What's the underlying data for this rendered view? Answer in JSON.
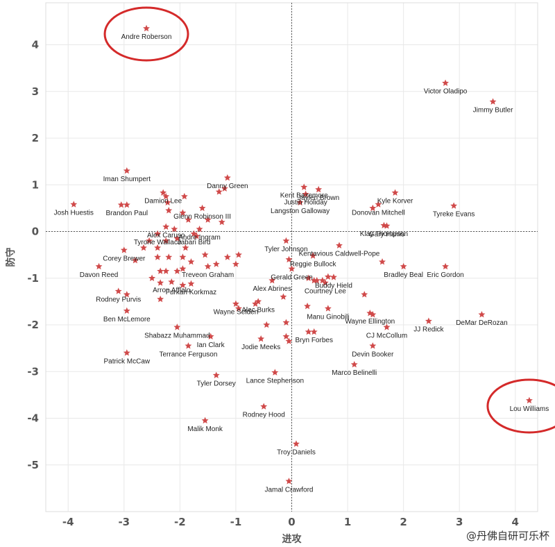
{
  "colors": {
    "marker": "#d04a4a",
    "highlight": "#d42a2a",
    "grid": "#e8e8e8",
    "zero": "#555555"
  },
  "watermark": "@丹佛自研可乐杯",
  "chart_data": {
    "type": "scatter",
    "title": "",
    "xlabel": "进攻",
    "ylabel": "防守",
    "xlim": [
      -4.4,
      4.4
    ],
    "ylim": [
      -6.0,
      4.9
    ],
    "xticks": [
      -4,
      -3,
      -2,
      -1,
      0,
      1,
      2,
      3,
      4
    ],
    "yticks": [
      4,
      3,
      2,
      1,
      0,
      -1,
      -2,
      -3,
      -4,
      -5
    ],
    "grid": true,
    "highlighted": [
      "Andre Roberson",
      "Lou Williams"
    ],
    "points": [
      {
        "name": "Andre Roberson",
        "x": -2.6,
        "y": 4.35
      },
      {
        "name": "Victor Oladipo",
        "x": 2.75,
        "y": 3.18
      },
      {
        "name": "Jimmy Butler",
        "x": 3.6,
        "y": 2.78
      },
      {
        "name": "Iman Shumpert",
        "x": -2.95,
        "y": 1.3
      },
      {
        "name": "Danny Green",
        "x": -1.15,
        "y": 1.15
      },
      {
        "name": "Kent Bazemore",
        "x": 0.22,
        "y": 0.95
      },
      {
        "name": "Damion Lee",
        "x": -2.3,
        "y": 0.83
      },
      {
        "name": "Justin Holiday",
        "x": 0.25,
        "y": 0.8
      },
      {
        "name": "Jaylen Brown",
        "x": 0.48,
        "y": 0.9
      },
      {
        "name": "Kyle Korver",
        "x": 1.85,
        "y": 0.83
      },
      {
        "name": "Josh Huestis",
        "x": -3.9,
        "y": 0.58
      },
      {
        "name": "Brandon Paul",
        "x": -2.95,
        "y": 0.57
      },
      {
        "name": "Glenn Robinson III",
        "x": -1.6,
        "y": 0.5
      },
      {
        "name": "Langston Galloway",
        "x": 0.15,
        "y": 0.62
      },
      {
        "name": "Donovan Mitchell",
        "x": 1.55,
        "y": 0.58
      },
      {
        "name": "Tyreke Evans",
        "x": 2.9,
        "y": 0.55
      },
      {
        "name": "Alex Caruso",
        "x": -2.25,
        "y": 0.1
      },
      {
        "name": "Klay Thompson",
        "x": 1.65,
        "y": 0.13
      },
      {
        "name": "Gary Harris",
        "x": 1.7,
        "y": 0.12
      },
      {
        "name": "Andre Ingram",
        "x": -1.65,
        "y": 0.05
      },
      {
        "name": "Tyrone Wallace",
        "x": -2.4,
        "y": -0.05
      },
      {
        "name": "Jabari Bird",
        "x": -1.75,
        "y": -0.05
      },
      {
        "name": "Tyler Johnson",
        "x": -0.1,
        "y": -0.2
      },
      {
        "name": "Kentavious Caldwell-Pope",
        "x": 0.85,
        "y": -0.3
      },
      {
        "name": "Corey Brewer",
        "x": -3.0,
        "y": -0.4
      },
      {
        "name": "Reggie Bullock",
        "x": 0.38,
        "y": -0.52
      },
      {
        "name": "Davon Reed",
        "x": -3.45,
        "y": -0.75
      },
      {
        "name": "Gerald Green",
        "x": 0.0,
        "y": -0.8
      },
      {
        "name": "Treveon Graham",
        "x": -1.5,
        "y": -0.75
      },
      {
        "name": "Buddy Hield",
        "x": 0.75,
        "y": -0.98
      },
      {
        "name": "Bradley Beal",
        "x": 2.0,
        "y": -0.75
      },
      {
        "name": "Eric Gordon",
        "x": 2.75,
        "y": -0.75
      },
      {
        "name": "Arron Afflalo",
        "x": -2.15,
        "y": -1.08
      },
      {
        "name": "Alex Abrines",
        "x": -0.35,
        "y": -1.05
      },
      {
        "name": "Rodney Purvis",
        "x": -3.1,
        "y": -1.28
      },
      {
        "name": "Furkan Korkmaz",
        "x": -1.8,
        "y": -1.12
      },
      {
        "name": "Courtney Lee",
        "x": 0.6,
        "y": -1.1
      },
      {
        "name": "Wayne Selden",
        "x": -1.0,
        "y": -1.55
      },
      {
        "name": "Alec Burks",
        "x": -0.6,
        "y": -1.5
      },
      {
        "name": "Wayne Ellington",
        "x": 1.4,
        "y": -1.75
      },
      {
        "name": "Manu Ginobili",
        "x": 0.65,
        "y": -1.65
      },
      {
        "name": "DeMar DeRozan",
        "x": 3.4,
        "y": -1.78
      },
      {
        "name": "Ben McLemore",
        "x": -2.95,
        "y": -1.7
      },
      {
        "name": "Shabazz Muhammad",
        "x": -2.05,
        "y": -2.05
      },
      {
        "name": "JJ Redick",
        "x": 2.45,
        "y": -1.92
      },
      {
        "name": "CJ McCollum",
        "x": 1.7,
        "y": -2.05
      },
      {
        "name": "Bryn Forbes",
        "x": 0.4,
        "y": -2.15
      },
      {
        "name": "Ian Clark",
        "x": -1.45,
        "y": -2.25
      },
      {
        "name": "Jodie Meeks",
        "x": -0.55,
        "y": -2.3
      },
      {
        "name": "Terrance Ferguson",
        "x": -1.85,
        "y": -2.45
      },
      {
        "name": "Patrick McCaw",
        "x": -2.95,
        "y": -2.6
      },
      {
        "name": "Devin Booker",
        "x": 1.45,
        "y": -2.45
      },
      {
        "name": "Marco Belinelli",
        "x": 1.12,
        "y": -2.85
      },
      {
        "name": "Tyler Dorsey",
        "x": -1.35,
        "y": -3.08
      },
      {
        "name": "Lance Stephenson",
        "x": -0.3,
        "y": -3.02
      },
      {
        "name": "Lou Williams",
        "x": 4.25,
        "y": -3.62
      },
      {
        "name": "Rodney Hood",
        "x": -0.5,
        "y": -3.75
      },
      {
        "name": "Malik Monk",
        "x": -1.55,
        "y": -4.05
      },
      {
        "name": "Troy Daniels",
        "x": 0.08,
        "y": -4.55
      },
      {
        "name": "Jamal Crawford",
        "x": -0.05,
        "y": -5.35
      }
    ],
    "unlabeled_points": [
      {
        "x": -3.05,
        "y": 0.57
      },
      {
        "x": -2.25,
        "y": 0.75
      },
      {
        "x": -2.22,
        "y": 0.62
      },
      {
        "x": -1.92,
        "y": 0.75
      },
      {
        "x": -1.3,
        "y": 0.85
      },
      {
        "x": -1.2,
        "y": 0.92
      },
      {
        "x": -2.2,
        "y": 0.45
      },
      {
        "x": -1.95,
        "y": 0.4
      },
      {
        "x": -1.85,
        "y": 0.25
      },
      {
        "x": -1.5,
        "y": 0.25
      },
      {
        "x": -1.25,
        "y": 0.2
      },
      {
        "x": -2.1,
        "y": 0.05
      },
      {
        "x": -2.55,
        "y": -0.2
      },
      {
        "x": -2.25,
        "y": -0.2
      },
      {
        "x": -2.05,
        "y": -0.15
      },
      {
        "x": -1.7,
        "y": -0.1
      },
      {
        "x": -2.65,
        "y": -0.35
      },
      {
        "x": -2.4,
        "y": -0.35
      },
      {
        "x": -1.9,
        "y": -0.35
      },
      {
        "x": -2.8,
        "y": -0.62
      },
      {
        "x": -2.4,
        "y": -0.55
      },
      {
        "x": -2.2,
        "y": -0.55
      },
      {
        "x": -1.95,
        "y": -0.55
      },
      {
        "x": -1.8,
        "y": -0.65
      },
      {
        "x": -1.55,
        "y": -0.5
      },
      {
        "x": -1.15,
        "y": -0.55
      },
      {
        "x": -0.95,
        "y": -0.5
      },
      {
        "x": -1.0,
        "y": -0.7
      },
      {
        "x": -1.35,
        "y": -0.7
      },
      {
        "x": -2.35,
        "y": -0.85
      },
      {
        "x": -2.25,
        "y": -0.85
      },
      {
        "x": -2.05,
        "y": -0.85
      },
      {
        "x": -1.95,
        "y": -0.8
      },
      {
        "x": -2.5,
        "y": -1.0
      },
      {
        "x": -2.35,
        "y": -1.1
      },
      {
        "x": -1.95,
        "y": -1.15
      },
      {
        "x": -2.95,
        "y": -1.35
      },
      {
        "x": -2.35,
        "y": -1.45
      },
      {
        "x": -0.95,
        "y": -1.65
      },
      {
        "x": -0.65,
        "y": -1.55
      },
      {
        "x": -0.15,
        "y": -1.4
      },
      {
        "x": -0.1,
        "y": -1.95
      },
      {
        "x": 0.3,
        "y": -1.0
      },
      {
        "x": 0.45,
        "y": -1.05
      },
      {
        "x": 0.55,
        "y": -1.05
      },
      {
        "x": 0.28,
        "y": -1.6
      },
      {
        "x": 0.3,
        "y": -2.15
      },
      {
        "x": -0.1,
        "y": -2.25
      },
      {
        "x": -0.05,
        "y": -2.35
      },
      {
        "x": -0.45,
        "y": -2.0
      },
      {
        "x": -0.05,
        "y": -0.6
      },
      {
        "x": 0.65,
        "y": -0.97
      },
      {
        "x": 1.62,
        "y": -0.65
      },
      {
        "x": 1.45,
        "y": -1.78
      },
      {
        "x": 1.3,
        "y": -1.35
      },
      {
        "x": 1.45,
        "y": 0.5
      },
      {
        "x": 0.4,
        "y": -1.05
      }
    ]
  }
}
